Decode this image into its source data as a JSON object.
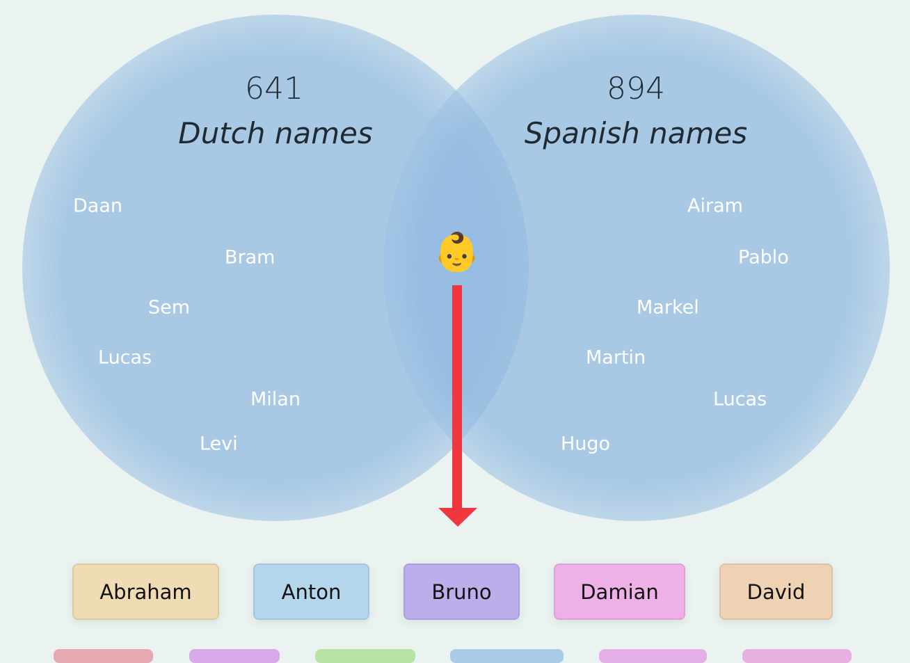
{
  "venn": {
    "left": {
      "count": 641,
      "label": "Dutch names",
      "names": [
        "Daan",
        "Bram",
        "Sem",
        "Lucas",
        "Milan",
        "Levi"
      ]
    },
    "right": {
      "count": 894,
      "label": "Spanish names",
      "names": [
        "Airam",
        "Pablo",
        "Markel",
        "Martin",
        "Lucas",
        "Hugo"
      ]
    },
    "center_icon": "👶"
  },
  "results": [
    "Abraham",
    "Anton",
    "Bruno",
    "Damian",
    "David"
  ]
}
